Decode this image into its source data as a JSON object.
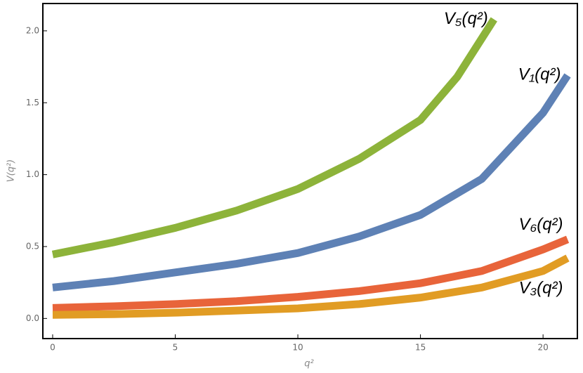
{
  "chart_data": {
    "type": "line",
    "xlabel": "q²",
    "ylabel": "V(q²)",
    "xlim": [
      -0.4,
      21.4
    ],
    "ylim": [
      -0.14,
      2.19
    ],
    "xticks": [
      0,
      5,
      10,
      15,
      20
    ],
    "yticks": [
      {
        "value": 0,
        "label": "0.0"
      },
      0.5,
      {
        "value": 1,
        "label": "1.0"
      },
      1.5,
      {
        "value": 2,
        "label": "2.0"
      }
    ],
    "series": [
      {
        "name": "V₅(q²)",
        "color": "#8db33a",
        "x": [
          0,
          2.5,
          5,
          7.5,
          10,
          12.5,
          15,
          16.5,
          18
        ],
        "values": [
          0.445,
          0.53,
          0.63,
          0.75,
          0.9,
          1.11,
          1.38,
          1.68,
          2.08
        ]
      },
      {
        "name": "V₁(q²)",
        "color": "#5e81b5",
        "x": [
          0,
          2.5,
          5,
          7.5,
          10,
          12.5,
          15,
          17.5,
          20,
          21
        ],
        "values": [
          0.215,
          0.26,
          0.32,
          0.38,
          0.455,
          0.57,
          0.72,
          0.97,
          1.43,
          1.69
        ]
      },
      {
        "name": "V₆(q²)",
        "color": "#e8643a",
        "x": [
          0,
          2.5,
          5,
          7.5,
          10,
          12.5,
          15,
          17.5,
          20,
          21
        ],
        "values": [
          0.073,
          0.085,
          0.1,
          0.12,
          0.15,
          0.19,
          0.245,
          0.33,
          0.48,
          0.55
        ]
      },
      {
        "name": "V₃(q²)",
        "color": "#e19c24",
        "x": [
          0,
          2.5,
          5,
          7.5,
          10,
          12.5,
          15,
          17.5,
          20,
          21
        ],
        "values": [
          0.025,
          0.03,
          0.04,
          0.055,
          0.07,
          0.1,
          0.145,
          0.215,
          0.33,
          0.42
        ]
      }
    ]
  }
}
